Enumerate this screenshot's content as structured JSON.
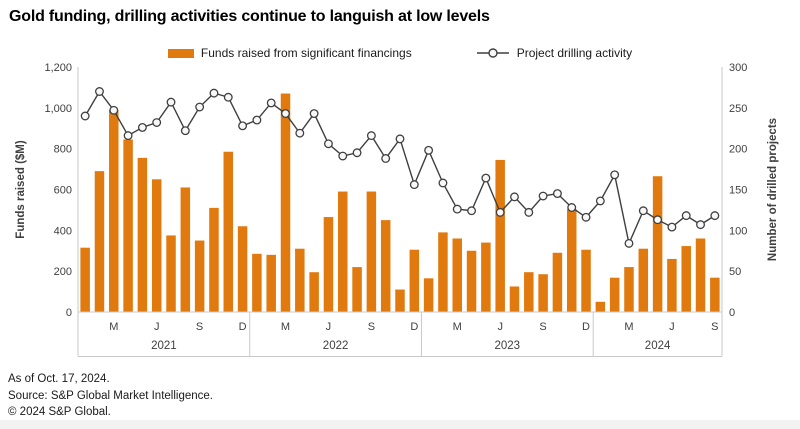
{
  "title": "Gold funding, drilling activities continue to languish at low levels",
  "legend": {
    "bar_label": "Funds raised from significant financings",
    "line_label": "Project drilling activity"
  },
  "footer": {
    "as_of": "As of Oct. 17, 2024.",
    "source": "Source: S&P Global Market Intelligence.",
    "copyright": "© 2024 S&P Global."
  },
  "colors": {
    "bar": "#E07A0E",
    "line": "#3F3F3F",
    "marker_fill": "#F8F8F8",
    "axis_line": "#c9c9c9",
    "tick_text": "#404040"
  },
  "chart_data": {
    "type": "combo",
    "subtype": "bar+line",
    "grid": false,
    "legend_position": "top",
    "categories": [
      "Jan 2021",
      "Feb 2021",
      "Mar 2021",
      "Apr 2021",
      "May 2021",
      "Jun 2021",
      "Jul 2021",
      "Aug 2021",
      "Sep 2021",
      "Oct 2021",
      "Nov 2021",
      "Dec 2021",
      "Jan 2022",
      "Feb 2022",
      "Mar 2022",
      "Apr 2022",
      "May 2022",
      "Jun 2022",
      "Jul 2022",
      "Aug 2022",
      "Sep 2022",
      "Oct 2022",
      "Nov 2022",
      "Dec 2022",
      "Jan 2023",
      "Feb 2023",
      "Mar 2023",
      "Apr 2023",
      "May 2023",
      "Jun 2023",
      "Jul 2023",
      "Aug 2023",
      "Sep 2023",
      "Oct 2023",
      "Nov 2023",
      "Dec 2023",
      "Jan 2024",
      "Feb 2024",
      "Mar 2024",
      "Apr 2024",
      "May 2024",
      "Jun 2024",
      "Jul 2024",
      "Aug 2024",
      "Sep 2024"
    ],
    "series": [
      {
        "name": "Funds raised from significant financings",
        "type": "bar",
        "axis": "left",
        "color": "#E07A0E",
        "values": [
          315,
          690,
          990,
          845,
          755,
          650,
          375,
          610,
          350,
          510,
          785,
          420,
          285,
          280,
          1070,
          310,
          195,
          465,
          590,
          220,
          590,
          450,
          110,
          305,
          165,
          390,
          360,
          300,
          340,
          745,
          125,
          195,
          185,
          290,
          505,
          305,
          50,
          168,
          220,
          310,
          665,
          260,
          323,
          360,
          168
        ]
      },
      {
        "name": "Project drilling activity",
        "type": "line",
        "axis": "right",
        "color": "#3F3F3F",
        "marker": "circle",
        "marker_fill": "#F8F8F8",
        "values": [
          240,
          270,
          247,
          216,
          226,
          232,
          257,
          222,
          251,
          268,
          263,
          228,
          235,
          256,
          243,
          219,
          243,
          206,
          191,
          195,
          216,
          188,
          212,
          156,
          198,
          158,
          126,
          124,
          164,
          122,
          141,
          122,
          142,
          145,
          128,
          116,
          136,
          168,
          84,
          124,
          113,
          104,
          118,
          107,
          118
        ]
      }
    ],
    "left_axis": {
      "title": "Funds raised ($M)",
      "min": 0,
      "max": 1200,
      "step": 200,
      "tick_labels": [
        "0",
        "200",
        "400",
        "600",
        "800",
        "1,000",
        "1,200"
      ]
    },
    "right_axis": {
      "title": "Number of drilled projects",
      "min": 0,
      "max": 300,
      "step": 50,
      "tick_labels": [
        "0",
        "50",
        "100",
        "150",
        "200",
        "250",
        "300"
      ]
    },
    "x_ticks": [
      {
        "index": 2,
        "label": "M"
      },
      {
        "index": 5,
        "label": "J"
      },
      {
        "index": 8,
        "label": "S"
      },
      {
        "index": 11,
        "label": "D"
      },
      {
        "index": 14,
        "label": "M"
      },
      {
        "index": 17,
        "label": "J"
      },
      {
        "index": 20,
        "label": "S"
      },
      {
        "index": 23,
        "label": "D"
      },
      {
        "index": 26,
        "label": "M"
      },
      {
        "index": 29,
        "label": "J"
      },
      {
        "index": 32,
        "label": "S"
      },
      {
        "index": 35,
        "label": "D"
      },
      {
        "index": 38,
        "label": "M"
      },
      {
        "index": 41,
        "label": "J"
      },
      {
        "index": 44,
        "label": "S"
      }
    ],
    "year_bands": [
      {
        "label": "2021",
        "start": 0,
        "end": 11
      },
      {
        "label": "2022",
        "start": 12,
        "end": 23
      },
      {
        "label": "2023",
        "start": 24,
        "end": 35
      },
      {
        "label": "2024",
        "start": 36,
        "end": 44
      }
    ]
  }
}
